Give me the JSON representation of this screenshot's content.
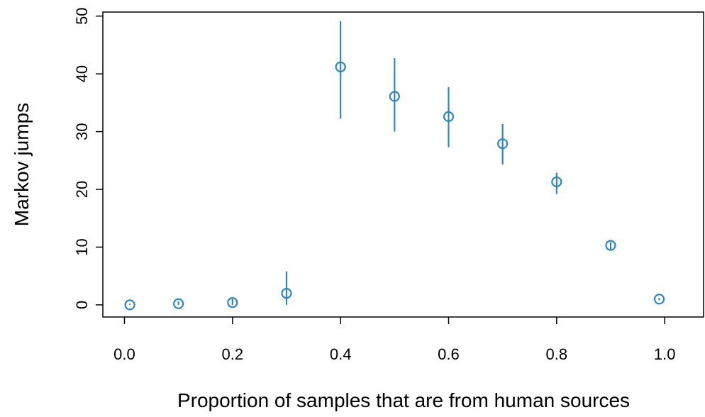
{
  "chart_data": {
    "type": "scatter",
    "x_label": "Proportion of samples that are from human sources",
    "y_label": "Markov jumps",
    "xlim": [
      -0.04,
      1.072
    ],
    "ylim": [
      -2.1,
      50.7
    ],
    "xticks": [
      {
        "value": 0,
        "label": "0.0"
      },
      0.2,
      0.4,
      0.6,
      0.8,
      {
        "value": 1,
        "label": "1.0"
      }
    ],
    "yticks": [
      0,
      10,
      20,
      30,
      40,
      50
    ],
    "grid": false,
    "series": [
      {
        "color": "#2e86c1",
        "x": [
          0.01,
          0.1,
          0.2,
          0.3,
          0.4,
          0.5,
          0.6,
          0.7,
          0.8,
          0.9,
          0.99
        ],
        "values": [
          0.0,
          0.2,
          0.4,
          2.0,
          41.2,
          36.1,
          32.6,
          27.9,
          21.3,
          10.3,
          1.0
        ],
        "lower": [
          0.0,
          0.0,
          0.0,
          0.0,
          32.2,
          30.0,
          27.3,
          24.3,
          19.2,
          9.6,
          0.8
        ],
        "upper": [
          0.2,
          0.6,
          1.0,
          5.8,
          49.1,
          42.7,
          37.7,
          31.3,
          22.9,
          10.9,
          1.2
        ]
      }
    ]
  }
}
